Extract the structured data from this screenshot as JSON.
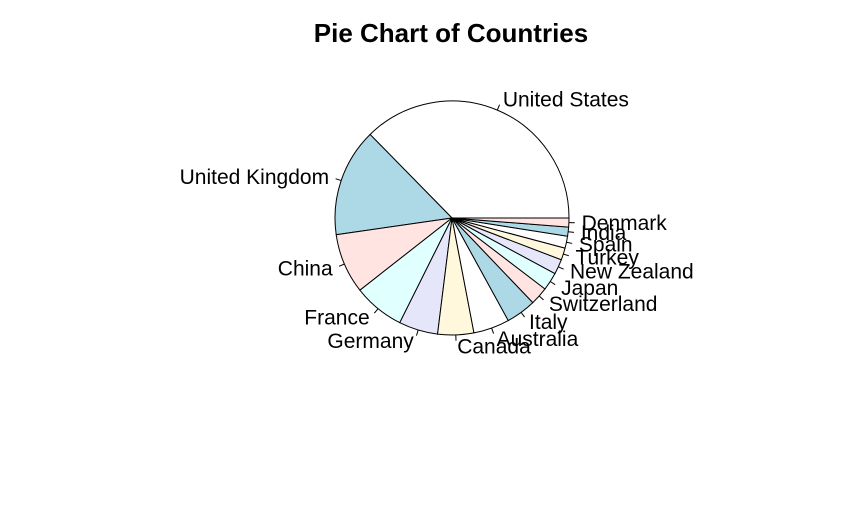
{
  "chart_data": {
    "type": "pie",
    "title": "Pie Chart of Countries",
    "start_angle_deg": 0,
    "direction": "counterclockwise",
    "categories": [
      "United States",
      "United Kingdom",
      "China",
      "France",
      "Germany",
      "Canada",
      "Australia",
      "Italy",
      "Switzerland",
      "Japan",
      "New Zealand",
      "Turkey",
      "Spain",
      "India",
      "Denmark"
    ],
    "values": [
      4500,
      1800,
      1000,
      850,
      650,
      600,
      600,
      500,
      300,
      300,
      250,
      200,
      200,
      150,
      150
    ],
    "colors": [
      "#FFFFFF",
      "#ADD8E6",
      "#FFE4E1",
      "#E0FFFF",
      "#E6E6FA",
      "#FFF8DC",
      "#FFFFFF",
      "#ADD8E6",
      "#FFE4E1",
      "#E0FFFF",
      "#E6E6FA",
      "#FFF8DC",
      "#FFFFFF",
      "#ADD8E6",
      "#FFE4E1"
    ]
  }
}
